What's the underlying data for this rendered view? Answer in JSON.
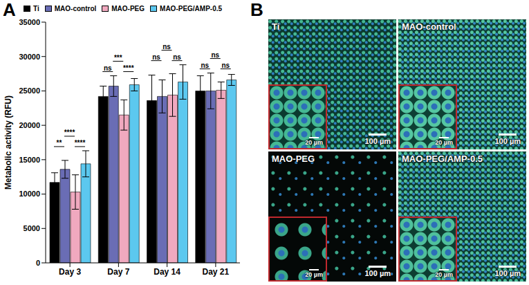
{
  "chart_data": {
    "type": "bar",
    "panel": "A",
    "y_label": "Metabolic activity (RFU)",
    "categories": [
      "Day 3",
      "Day 7",
      "Day 14",
      "Day 21"
    ],
    "series": [
      {
        "name": "Ti",
        "color": "#000000",
        "values": [
          11700,
          24200,
          23600,
          25000
        ],
        "errors": [
          1400,
          1500,
          3700,
          2200
        ]
      },
      {
        "name": "MAO-control",
        "color": "#6a6db5",
        "values": [
          13600,
          25700,
          24200,
          25000
        ],
        "errors": [
          1300,
          1500,
          2400,
          2600
        ]
      },
      {
        "name": "MAO-PEG",
        "color": "#f0a9bf",
        "values": [
          10300,
          21500,
          24400,
          25100
        ],
        "errors": [
          2500,
          2200,
          3100,
          1200
        ]
      },
      {
        "name": "MAO-PEG/AMP-0.5",
        "color": "#5cc8ef",
        "values": [
          14400,
          25900,
          26300,
          26600
        ],
        "errors": [
          1900,
          900,
          2500,
          800
        ]
      }
    ],
    "ylim": [
      0,
      35000
    ],
    "yticks": [
      0,
      5000,
      10000,
      15000,
      20000,
      25000,
      30000,
      35000
    ],
    "grid": false,
    "legend": "top",
    "annotations": [
      {
        "category": "Day 3",
        "from": "Ti",
        "to": "MAO-control",
        "text": "**"
      },
      {
        "category": "Day 3",
        "from": "MAO-control",
        "to": "MAO-PEG",
        "text": "****"
      },
      {
        "category": "Day 3",
        "from": "MAO-PEG",
        "to": "MAO-PEG/AMP-0.5",
        "text": "****"
      },
      {
        "category": "Day 7",
        "from": "Ti",
        "to": "MAO-control",
        "text": "ns"
      },
      {
        "category": "Day 7",
        "from": "MAO-control",
        "to": "MAO-PEG",
        "text": "***"
      },
      {
        "category": "Day 7",
        "from": "MAO-PEG",
        "to": "MAO-PEG/AMP-0.5",
        "text": "****"
      },
      {
        "category": "Day 14",
        "from": "Ti",
        "to": "MAO-control",
        "text": "ns"
      },
      {
        "category": "Day 14",
        "from": "MAO-control",
        "to": "MAO-PEG",
        "text": "ns"
      },
      {
        "category": "Day 14",
        "from": "MAO-PEG",
        "to": "MAO-PEG/AMP-0.5",
        "text": "ns"
      },
      {
        "category": "Day 21",
        "from": "Ti",
        "to": "MAO-control",
        "text": "ns"
      },
      {
        "category": "Day 21",
        "from": "MAO-control",
        "to": "MAO-PEG",
        "text": "ns"
      },
      {
        "category": "Day 21",
        "from": "MAO-PEG",
        "to": "MAO-PEG/AMP-0.5",
        "text": "ns"
      }
    ]
  },
  "images": {
    "panel": "B",
    "items": [
      {
        "label": "Ti",
        "scale_bar": "100 µm",
        "inset_scale_bar": "20 µm"
      },
      {
        "label": "MAO-control",
        "scale_bar": "100 µm",
        "inset_scale_bar": "20 µm"
      },
      {
        "label": "MAO-PEG",
        "scale_bar": "100 µm",
        "inset_scale_bar": "20 µm"
      },
      {
        "label": "MAO-PEG/AMP-0.5",
        "scale_bar": "100 µm",
        "inset_scale_bar": "20 µm"
      }
    ]
  }
}
